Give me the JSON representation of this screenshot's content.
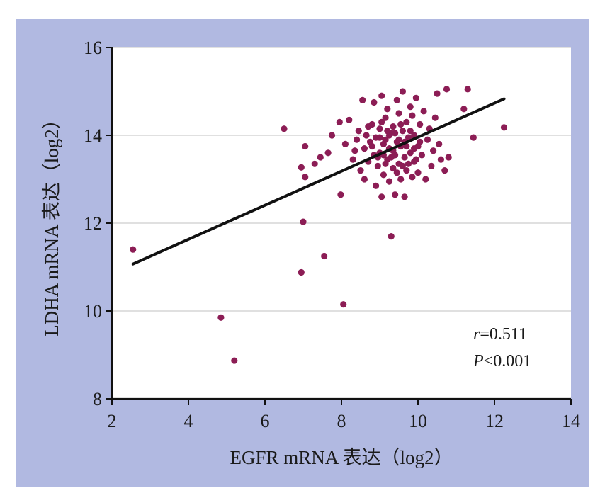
{
  "chart_data": {
    "type": "scatter",
    "xlabel": "EGFR mRNA 表达（log2）",
    "ylabel": "LDHA mRNA 表达（log2）",
    "xlim": [
      2,
      14
    ],
    "ylim": [
      8,
      16
    ],
    "xticks": [
      "2",
      "4",
      "6",
      "8",
      "10",
      "12",
      "14"
    ],
    "yticks": [
      "8",
      "10",
      "12",
      "14",
      "16"
    ],
    "grid": "horizontal",
    "point_color": "#8c1d55",
    "line_color": "#111111",
    "background_color": "#b1b9e1",
    "plot_background": "#ffffff",
    "annotations": {
      "r_label": "r",
      "r_value": "=0.511",
      "p_label": "P",
      "p_value": "<0.001"
    },
    "regression_line": {
      "x": [
        2.55,
        12.25
      ],
      "y": [
        11.07,
        14.83
      ]
    },
    "series": [
      {
        "points": [
          [
            2.55,
            11.4
          ],
          [
            4.85,
            9.85
          ],
          [
            5.2,
            8.87
          ],
          [
            6.5,
            14.15
          ],
          [
            6.95,
            10.88
          ],
          [
            6.95,
            13.27
          ],
          [
            7.0,
            12.03
          ],
          [
            7.05,
            13.75
          ],
          [
            7.05,
            13.05
          ],
          [
            7.3,
            13.35
          ],
          [
            7.45,
            13.5
          ],
          [
            7.55,
            11.25
          ],
          [
            7.65,
            13.6
          ],
          [
            7.75,
            14.0
          ],
          [
            7.95,
            14.3
          ],
          [
            7.98,
            12.65
          ],
          [
            8.05,
            10.15
          ],
          [
            8.1,
            13.8
          ],
          [
            8.2,
            14.35
          ],
          [
            8.3,
            13.45
          ],
          [
            8.35,
            13.65
          ],
          [
            8.4,
            13.9
          ],
          [
            8.45,
            14.1
          ],
          [
            8.5,
            13.2
          ],
          [
            8.55,
            14.8
          ],
          [
            8.6,
            13.7
          ],
          [
            8.6,
            13.0
          ],
          [
            8.65,
            14.0
          ],
          [
            8.7,
            13.4
          ],
          [
            8.75,
            13.85
          ],
          [
            8.8,
            14.25
          ],
          [
            8.85,
            13.55
          ],
          [
            8.85,
            14.75
          ],
          [
            8.9,
            12.85
          ],
          [
            8.9,
            13.95
          ],
          [
            8.95,
            13.3
          ],
          [
            9.0,
            14.15
          ],
          [
            9.0,
            13.6
          ],
          [
            9.05,
            12.6
          ],
          [
            9.05,
            14.9
          ],
          [
            9.1,
            13.8
          ],
          [
            9.1,
            13.1
          ],
          [
            9.15,
            14.4
          ],
          [
            9.15,
            13.9
          ],
          [
            9.2,
            13.45
          ],
          [
            9.2,
            14.6
          ],
          [
            9.25,
            12.95
          ],
          [
            9.25,
            13.7
          ],
          [
            9.3,
            14.05
          ],
          [
            9.3,
            11.7
          ],
          [
            9.35,
            13.25
          ],
          [
            9.35,
            14.2
          ],
          [
            9.4,
            13.55
          ],
          [
            9.4,
            12.65
          ],
          [
            9.45,
            14.8
          ],
          [
            9.45,
            13.85
          ],
          [
            9.5,
            13.35
          ],
          [
            9.5,
            14.5
          ],
          [
            9.55,
            13.0
          ],
          [
            9.55,
            13.75
          ],
          [
            9.6,
            14.1
          ],
          [
            9.6,
            15.0
          ],
          [
            9.65,
            13.5
          ],
          [
            9.65,
            12.6
          ],
          [
            9.7,
            14.3
          ],
          [
            9.7,
            13.2
          ],
          [
            9.75,
            13.95
          ],
          [
            9.8,
            14.65
          ],
          [
            9.8,
            13.6
          ],
          [
            9.85,
            13.05
          ],
          [
            9.9,
            14.0
          ],
          [
            9.9,
            13.4
          ],
          [
            9.95,
            14.85
          ],
          [
            10.0,
            13.75
          ],
          [
            10.0,
            13.15
          ],
          [
            10.05,
            14.25
          ],
          [
            10.1,
            13.55
          ],
          [
            10.15,
            14.55
          ],
          [
            10.2,
            13.0
          ],
          [
            10.25,
            13.9
          ],
          [
            10.3,
            14.15
          ],
          [
            10.35,
            13.3
          ],
          [
            10.4,
            13.65
          ],
          [
            10.45,
            14.4
          ],
          [
            10.5,
            14.95
          ],
          [
            10.55,
            13.8
          ],
          [
            10.6,
            13.45
          ],
          [
            10.7,
            13.2
          ],
          [
            10.75,
            15.05
          ],
          [
            10.8,
            13.5
          ],
          [
            11.2,
            14.6
          ],
          [
            11.3,
            15.05
          ],
          [
            11.45,
            13.95
          ],
          [
            12.25,
            14.18
          ],
          [
            8.95,
            13.5
          ],
          [
            9.05,
            14.3
          ],
          [
            9.15,
            13.35
          ],
          [
            9.25,
            14.0
          ],
          [
            9.35,
            13.65
          ],
          [
            9.45,
            13.15
          ],
          [
            9.55,
            14.25
          ],
          [
            9.65,
            13.85
          ],
          [
            9.75,
            13.35
          ],
          [
            9.85,
            14.45
          ],
          [
            9.95,
            13.45
          ],
          [
            10.05,
            13.85
          ],
          [
            9.0,
            13.95
          ],
          [
            9.1,
            13.55
          ],
          [
            9.2,
            14.1
          ],
          [
            9.3,
            13.5
          ],
          [
            9.4,
            14.05
          ],
          [
            9.5,
            13.9
          ],
          [
            9.6,
            13.3
          ],
          [
            9.7,
            13.75
          ],
          [
            9.8,
            14.1
          ],
          [
            9.9,
            13.7
          ],
          [
            8.8,
            13.75
          ],
          [
            8.7,
            14.2
          ]
        ]
      }
    ]
  }
}
